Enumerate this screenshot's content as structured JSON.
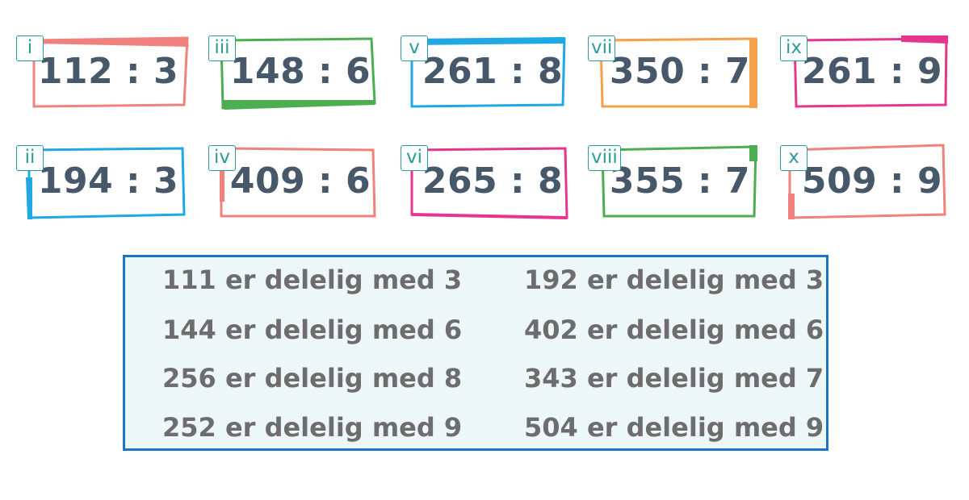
{
  "cards": [
    {
      "label": "i",
      "expression": "112 : 3",
      "color": "#f0817c"
    },
    {
      "label": "iii",
      "expression": "148 : 6",
      "color": "#4cae51"
    },
    {
      "label": "v",
      "expression": "261 : 8",
      "color": "#1fa8e3"
    },
    {
      "label": "vii",
      "expression": "350 : 7",
      "color": "#f5a04b"
    },
    {
      "label": "ix",
      "expression": "261 : 9",
      "color": "#e5358e"
    },
    {
      "label": "ii",
      "expression": "194 : 3",
      "color": "#1fa8e3"
    },
    {
      "label": "iv",
      "expression": "409 : 6",
      "color": "#f0817c"
    },
    {
      "label": "vi",
      "expression": "265 : 8",
      "color": "#e5358e"
    },
    {
      "label": "viii",
      "expression": "355 : 7",
      "color": "#4cae51"
    },
    {
      "label": "x",
      "expression": "509 : 9",
      "color": "#f0817c"
    }
  ],
  "answers": {
    "left": [
      "111 er delelig med 3",
      "144 er delelig med 6",
      "256 er delelig med 8",
      "252 er delelig med 9"
    ],
    "right": [
      "192 er delelig med 3",
      "402 er delelig med 6",
      "343 er delelig med 7",
      "504 er delelig med 9"
    ]
  },
  "colors": {
    "label_tag": "#2a9d9a",
    "expression_text": "#46586a",
    "answer_text": "#6d6d6d",
    "answer_border": "#1c74c4",
    "answer_background": "#eef7f8"
  }
}
